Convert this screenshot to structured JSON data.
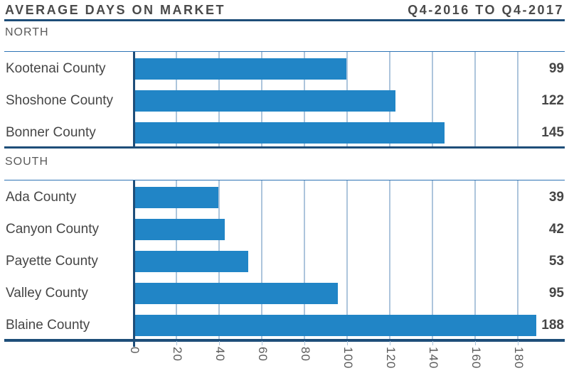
{
  "header": {
    "title": "AVERAGE DAYS ON MARKET",
    "period": "Q4-2016 TO Q4-2017"
  },
  "chart_data": {
    "type": "bar",
    "orientation": "horizontal",
    "title": "AVERAGE DAYS ON MARKET",
    "subtitle": "Q4-2016 TO Q4-2017",
    "xlabel": "",
    "ylabel": "",
    "xlim": [
      0,
      200
    ],
    "x_ticks": [
      0,
      20,
      40,
      60,
      80,
      100,
      120,
      140,
      160,
      180
    ],
    "grid": true,
    "value_labels_position": "right",
    "groups": [
      {
        "label": "NORTH",
        "categories": [
          "Kootenai County",
          "Shoshone County",
          "Bonner County"
        ],
        "values": [
          99,
          122,
          145
        ]
      },
      {
        "label": "SOUTH",
        "categories": [
          "Ada County",
          "Canyon County",
          "Payette County",
          "Valley County",
          "Blaine County"
        ],
        "values": [
          39,
          42,
          53,
          95,
          188
        ]
      }
    ]
  },
  "colors": {
    "bar": "#2185c6",
    "axis_navy": "#1e4e79",
    "gridline": "#adc5dc",
    "plot_top_line": "#2e74b5",
    "title_text": "#4a4a4a",
    "label_text": "#464646",
    "muted_text": "#5a5a5a"
  }
}
